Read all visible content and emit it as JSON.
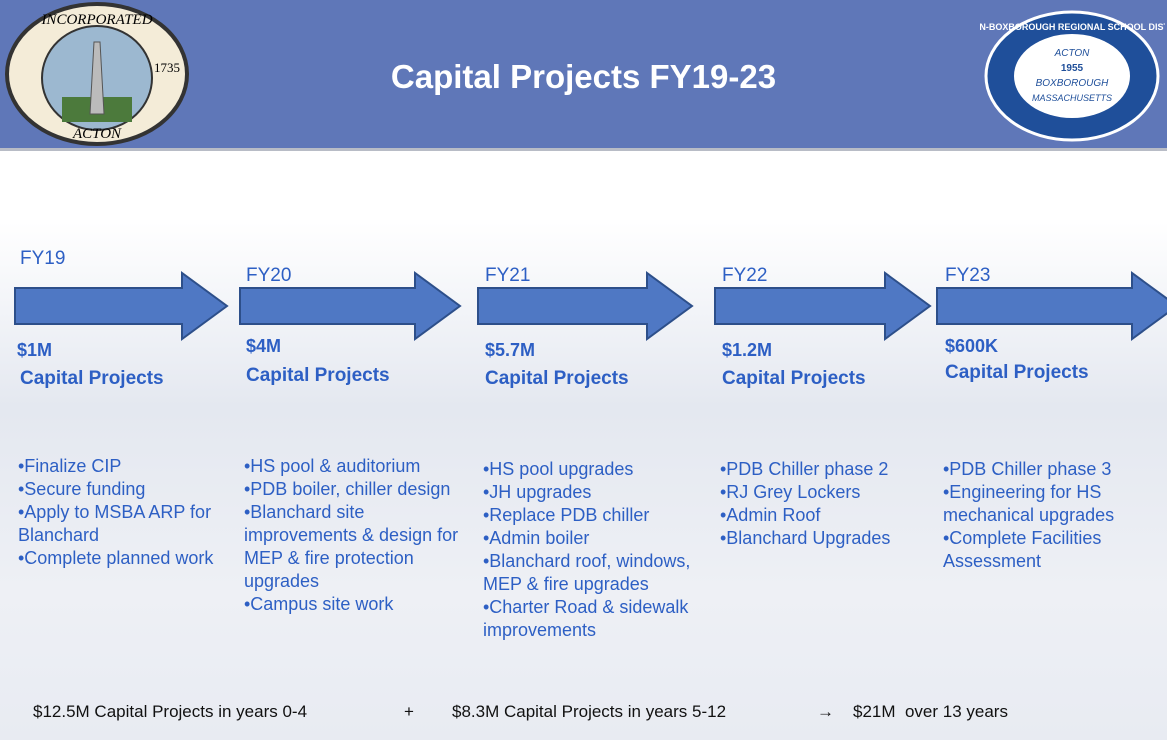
{
  "header": {
    "title": "Capital Projects FY19-23",
    "left_seal": [
      "INCORPORATED",
      "1735",
      "ACTON"
    ],
    "right_seal": [
      "ACTON-BOXBOROUGH REGIONAL SCHOOL DISTRICT",
      "ACTON",
      "1955",
      "BOXBOROUGH",
      "MASSACHUSETTS"
    ]
  },
  "columns": [
    {
      "year": "FY19",
      "amount": "$1M",
      "label": "Capital Projects",
      "items": [
        "•Finalize CIP",
        "•Secure funding",
        "•Apply to MSBA ARP for Blanchard",
        "•Complete planned work"
      ]
    },
    {
      "year": "FY20",
      "amount": "$4M",
      "label": "Capital Projects",
      "items": [
        "•HS pool & auditorium",
        "•PDB boiler, chiller design",
        "•Blanchard site improvements & design for MEP & fire protection upgrades",
        "•Campus site work"
      ]
    },
    {
      "year": "FY21",
      "amount": "$5.7M",
      "label": "Capital Projects",
      "items": [
        "•HS pool upgrades",
        "•JH upgrades",
        "•Replace PDB chiller",
        "•Admin boiler",
        "•Blanchard roof, windows, MEP & fire upgrades",
        "•Charter Road & sidewalk improvements"
      ]
    },
    {
      "year": "FY22",
      "amount": "$1.2M",
      "label": "Capital Projects",
      "items": [
        "•PDB Chiller phase 2",
        "•RJ Grey Lockers",
        "•Admin Roof",
        "•Blanchard Upgrades"
      ]
    },
    {
      "year": "FY23",
      "amount": "$600K",
      "label": "Capital Projects",
      "items": [
        "•PDB Chiller phase 3",
        "•Engineering for HS mechanical upgrades",
        "•Complete Facilities Assessment"
      ]
    }
  ],
  "footer": [
    "$12.5M Capital Projects in years 0-4",
    "+",
    "$8.3M Capital Projects in years 5-12",
    "→",
    "$21M  over 13 years"
  ]
}
